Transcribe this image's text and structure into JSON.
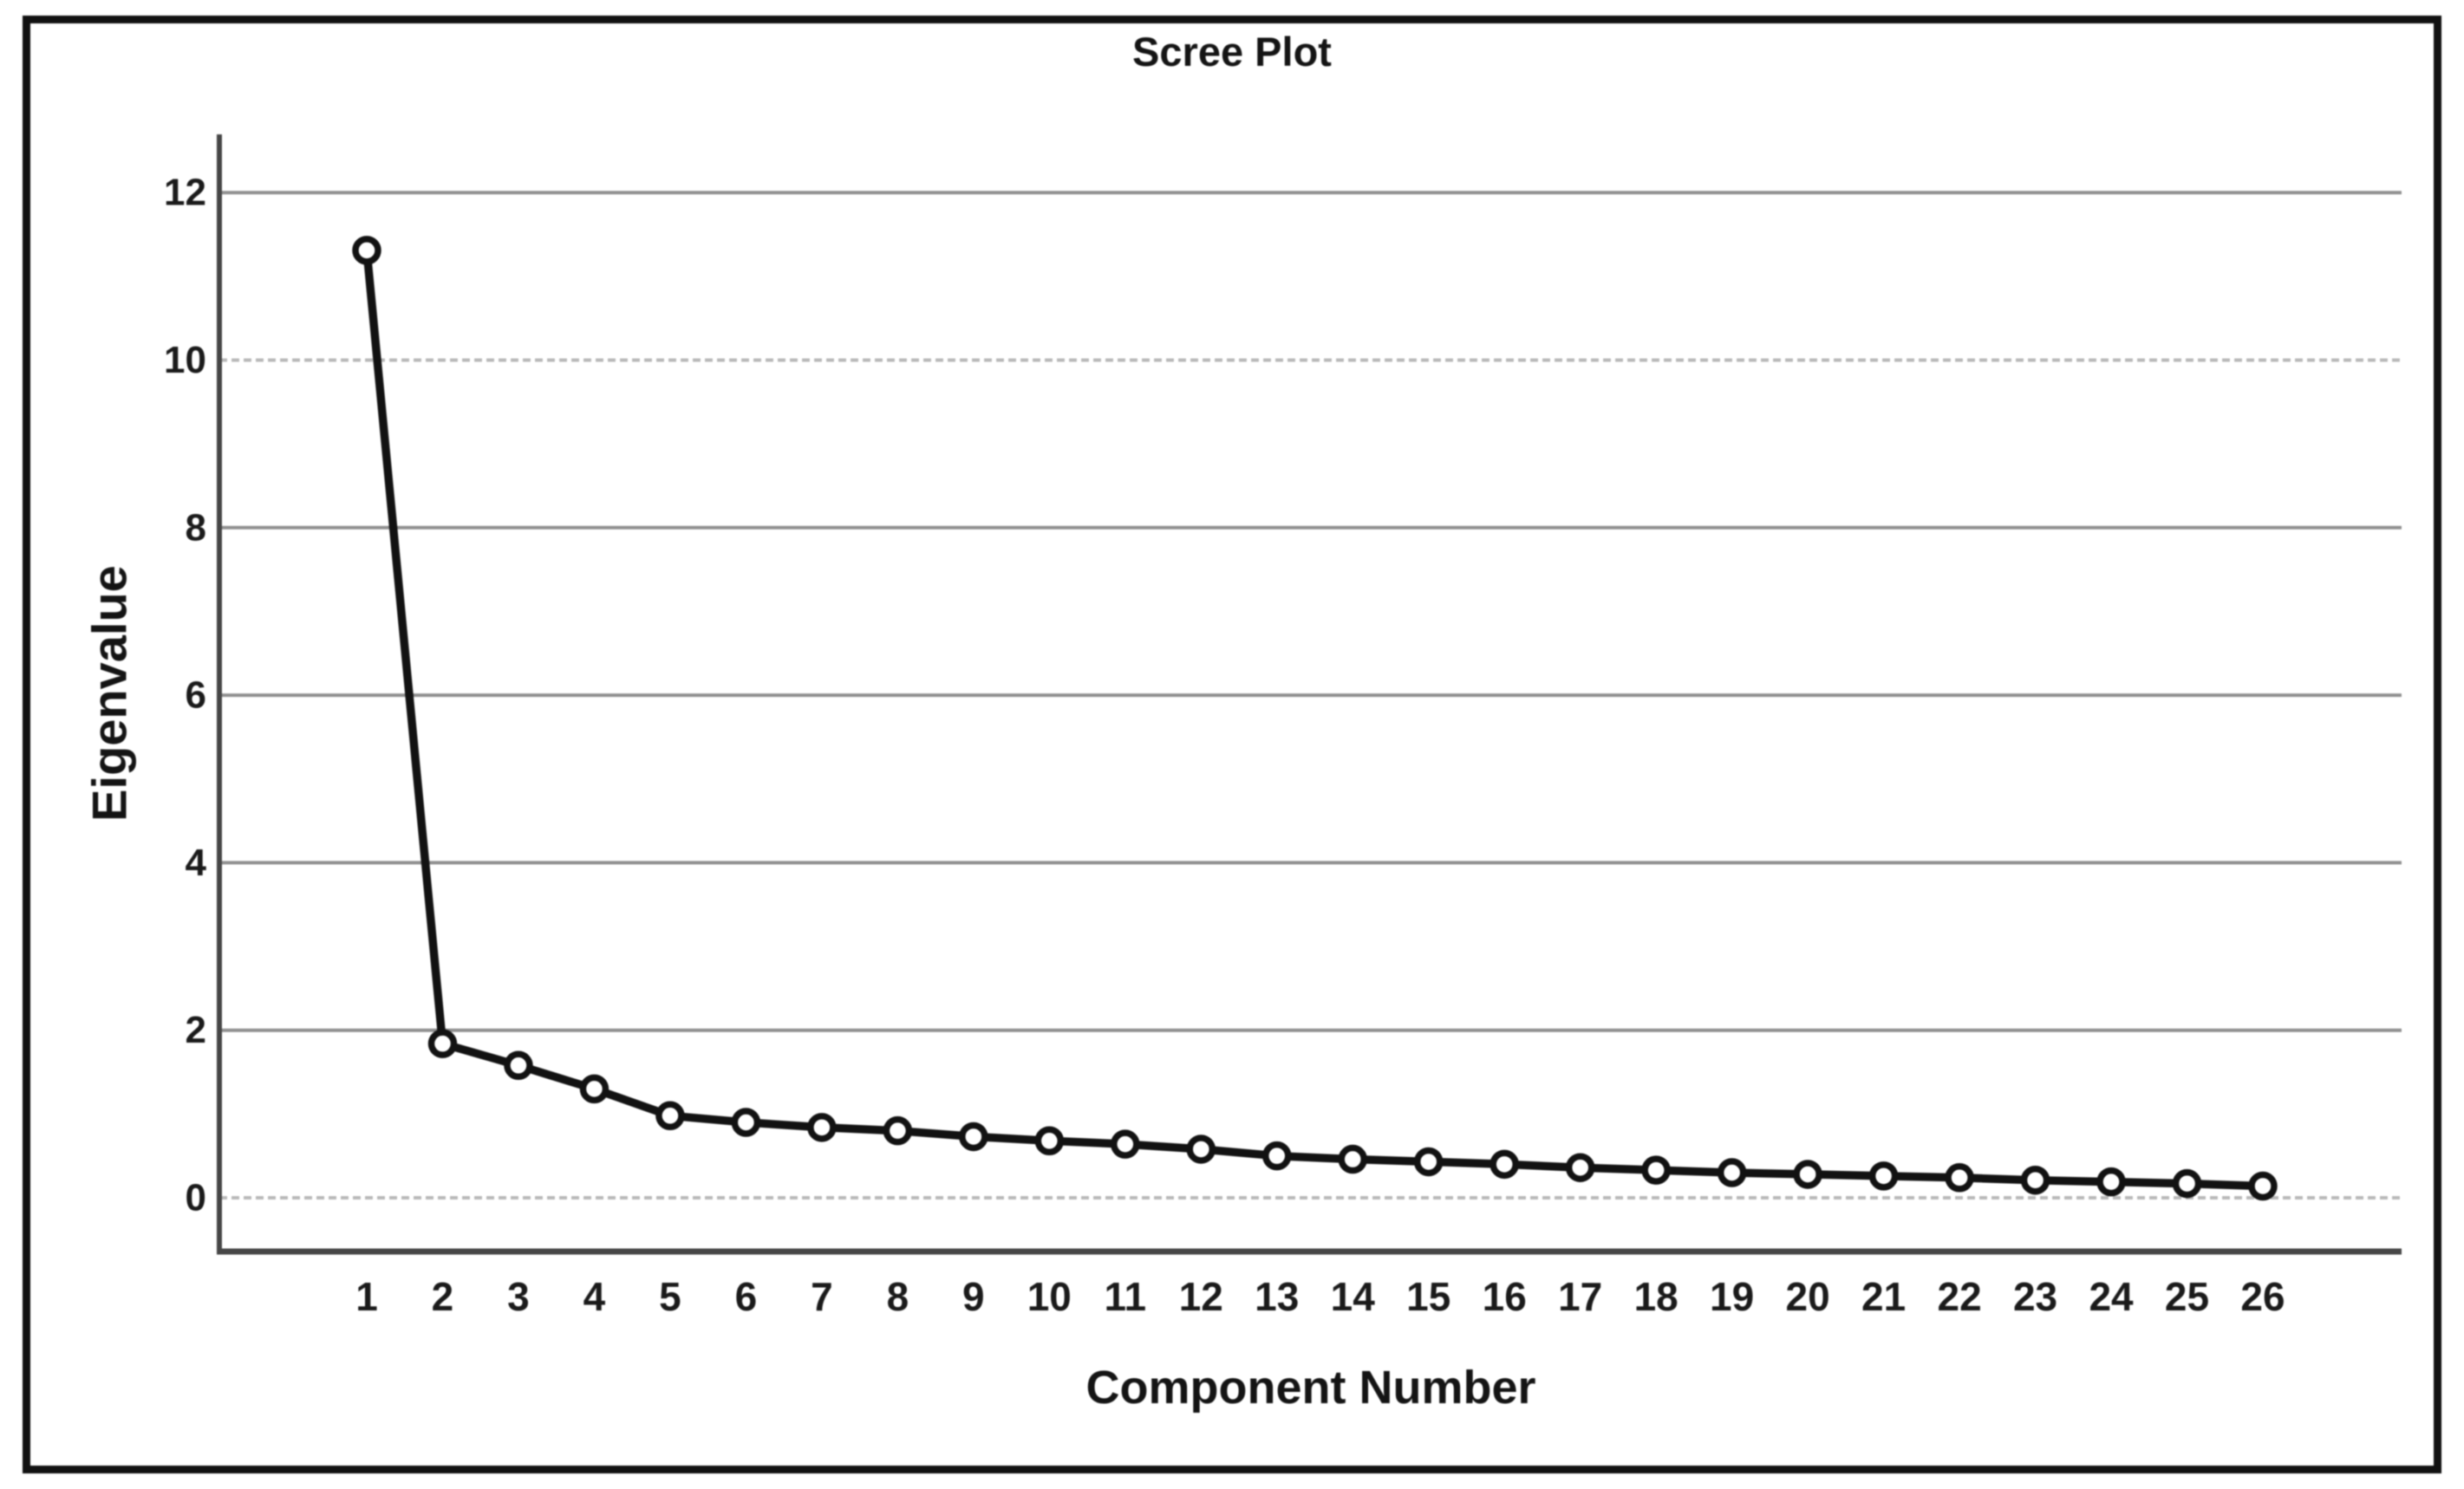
{
  "figure": {
    "background_color": "#ffffff",
    "frame_color": "#131313"
  },
  "chart_data": {
    "type": "line",
    "title": "Scree Plot",
    "xlabel": "Component Number",
    "ylabel": "Eigenvalue",
    "x": [
      1,
      2,
      3,
      4,
      5,
      6,
      7,
      8,
      9,
      10,
      11,
      12,
      13,
      14,
      15,
      16,
      17,
      18,
      19,
      20,
      21,
      22,
      23,
      24,
      25,
      26
    ],
    "series": [
      {
        "name": "Eigenvalue",
        "values": [
          11.31,
          1.84,
          1.58,
          1.3,
          0.98,
          0.9,
          0.84,
          0.8,
          0.73,
          0.68,
          0.64,
          0.58,
          0.5,
          0.46,
          0.43,
          0.4,
          0.36,
          0.33,
          0.3,
          0.28,
          0.26,
          0.24,
          0.21,
          0.19,
          0.17,
          0.14
        ]
      }
    ],
    "yticks": [
      0,
      2,
      4,
      6,
      8,
      10,
      12
    ],
    "ylim": [
      0,
      13.3
    ],
    "xlim": [
      0,
      27
    ],
    "grid": "horizontal",
    "legend": "none",
    "marker": "open-circle",
    "line_color": "#141414",
    "marker_fill": "#ffffff",
    "axis_color": "#474747",
    "gridline_color": "#8f8f8f",
    "gridline_color_light": "#b7b7b7",
    "tick_label_color": "#1c1c1c"
  }
}
